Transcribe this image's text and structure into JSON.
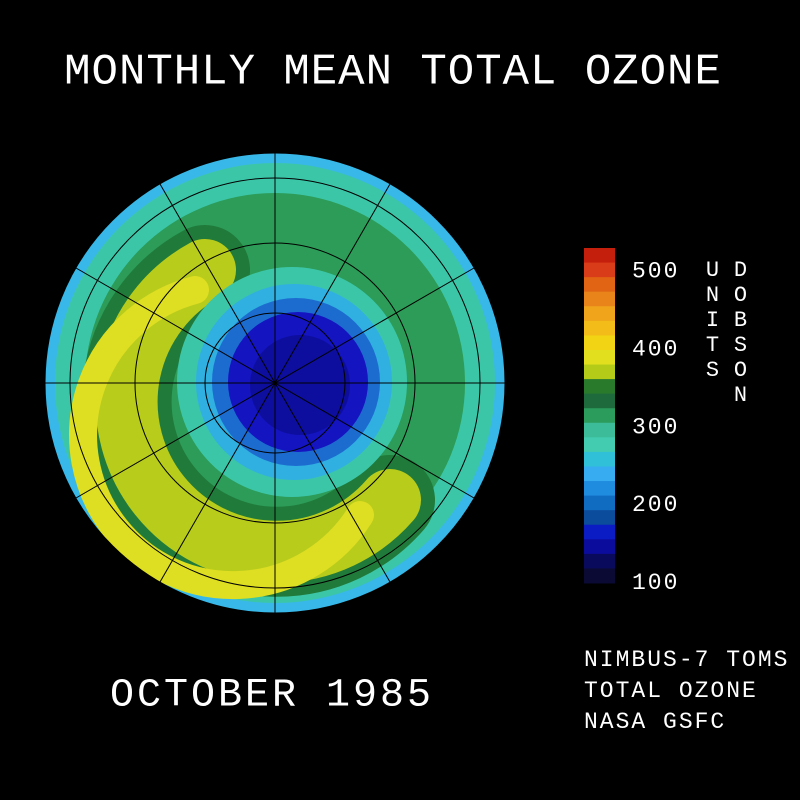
{
  "title": "MONTHLY MEAN TOTAL OZONE",
  "date": "OCTOBER 1985",
  "colorbar": {
    "label": "DOBSON UNITS",
    "range": [
      100,
      530
    ],
    "ticks": [
      100,
      200,
      300,
      400,
      500
    ],
    "colors": [
      "#c41e0c",
      "#d83c18",
      "#e06414",
      "#e8841a",
      "#f0a41c",
      "#f4bc18",
      "#f2d414",
      "#e2e01e",
      "#b4cc18",
      "#2a7a2c",
      "#1e6a3c",
      "#2c9c5c",
      "#3cbc98",
      "#44ccb0",
      "#30c0d8",
      "#38acf0",
      "#208ce0",
      "#106cc0",
      "#0c4c9c",
      "#0c1cc4",
      "#0c0c9c",
      "#0a0a5c",
      "#0a0a34"
    ]
  },
  "credits": [
    "NIMBUS-7 TOMS",
    "TOTAL OZONE",
    "NASA GSFC"
  ]
}
